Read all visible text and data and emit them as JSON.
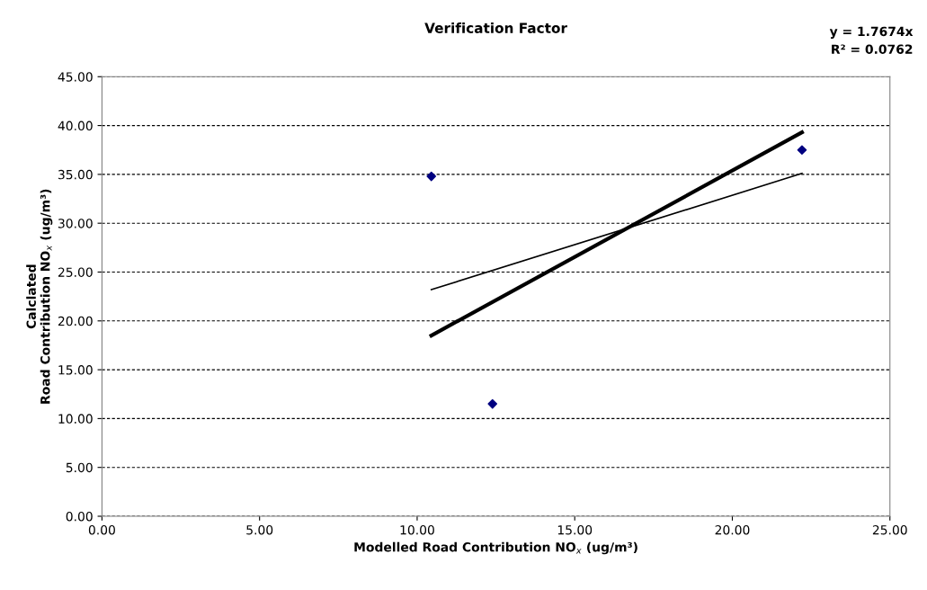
{
  "chart_data": {
    "type": "scatter",
    "title": "Verification Factor",
    "xlabel": "Modelled Road Contribution NO$_{x}$ (ug/m³)",
    "ylabel": "Calclated\nRoad Contribution NO$_{x}$ (ug/m³)",
    "annotations": [
      "y = 1.7674x",
      "R² = 0.0762"
    ],
    "series": [
      {
        "color": "#000080",
        "marker": "diamond",
        "x": [
          10.45,
          12.39,
          22.21
        ],
        "values": [
          34.8,
          11.5,
          37.5
        ]
      },
      {
        "type": "line",
        "color": "#000000",
        "marker": "none",
        "x": [
          10.45,
          22.21
        ],
        "values": [
          23.2,
          35.1
        ]
      },
      {
        "type": "line",
        "color": "#000000",
        "marker": "none",
        "x": [
          10.45,
          22.21
        ],
        "values": [
          18.5,
          39.3
        ]
      }
    ],
    "xlim": [
      0,
      25
    ],
    "ylim": [
      0,
      45
    ],
    "xticks": [
      {
        "value": 0,
        "label": "0.00"
      },
      {
        "value": 5,
        "label": "5.00"
      },
      {
        "value": 10,
        "label": "10.00"
      },
      {
        "value": 15,
        "label": "15.00"
      },
      {
        "value": 20,
        "label": "20.00"
      },
      {
        "value": 25,
        "label": "25.00"
      }
    ],
    "yticks": [
      {
        "value": 0,
        "label": "0.00"
      },
      {
        "value": 5,
        "label": "5.00"
      },
      {
        "value": 10,
        "label": "10.00"
      },
      {
        "value": 15,
        "label": "15.00"
      },
      {
        "value": 20,
        "label": "20.00"
      },
      {
        "value": 25,
        "label": "25.00"
      },
      {
        "value": 30,
        "label": "30.00"
      },
      {
        "value": 35,
        "label": "35.00"
      },
      {
        "value": 40,
        "label": "40.00"
      },
      {
        "value": 45,
        "label": "45.00"
      }
    ],
    "grid": "y",
    "legend": false
  }
}
